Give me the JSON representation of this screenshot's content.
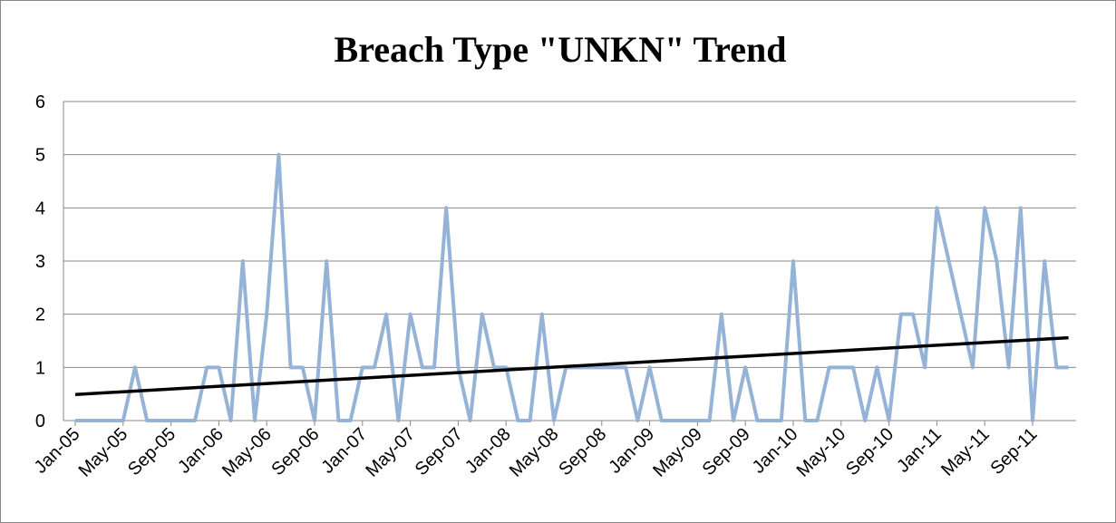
{
  "chart_data": {
    "type": "line",
    "title": "Breach Type \"UNKN\" Trend",
    "categories": [
      "Jan-05",
      null,
      null,
      null,
      "May-05",
      null,
      null,
      null,
      "Sep-05",
      null,
      null,
      null,
      "Jan-06",
      null,
      null,
      null,
      "May-06",
      null,
      null,
      null,
      "Sep-06",
      null,
      null,
      null,
      "Jan-07",
      null,
      null,
      null,
      "May-07",
      null,
      null,
      null,
      "Sep-07",
      null,
      null,
      null,
      "Jan-08",
      null,
      null,
      null,
      "May-08",
      null,
      null,
      null,
      "Sep-08",
      null,
      null,
      null,
      "Jan-09",
      null,
      null,
      null,
      "May-09",
      null,
      null,
      null,
      "Sep-09",
      null,
      null,
      null,
      "Jan-10",
      null,
      null,
      null,
      "May-10",
      null,
      null,
      null,
      "Sep-10",
      null,
      null,
      null,
      "Jan-11",
      null,
      null,
      null,
      "May-11",
      null,
      null,
      null,
      "Sep-11",
      null,
      null,
      null
    ],
    "series": [
      {
        "name": "UNKN",
        "color": "#95b3d7",
        "values": [
          0,
          0,
          0,
          0,
          0,
          1,
          0,
          0,
          0,
          0,
          0,
          1,
          1,
          0,
          3,
          0,
          2,
          5,
          1,
          1,
          0,
          3,
          0,
          0,
          1,
          1,
          2,
          0,
          2,
          1,
          1,
          4,
          1,
          0,
          2,
          1,
          1,
          0,
          0,
          2,
          0,
          1,
          1,
          1,
          1,
          1,
          1,
          0,
          1,
          0,
          0,
          0,
          0,
          0,
          2,
          0,
          1,
          0,
          0,
          0,
          3,
          0,
          0,
          1,
          1,
          1,
          0,
          1,
          0,
          2,
          2,
          1,
          4,
          3,
          2,
          1,
          4,
          3,
          1,
          4,
          0,
          3,
          1,
          1
        ]
      }
    ],
    "trendline": true,
    "trendline_color": "#000000",
    "ylim": [
      0,
      6
    ],
    "yticks": [
      0,
      1,
      2,
      3,
      4,
      5,
      6
    ],
    "grid": true
  }
}
